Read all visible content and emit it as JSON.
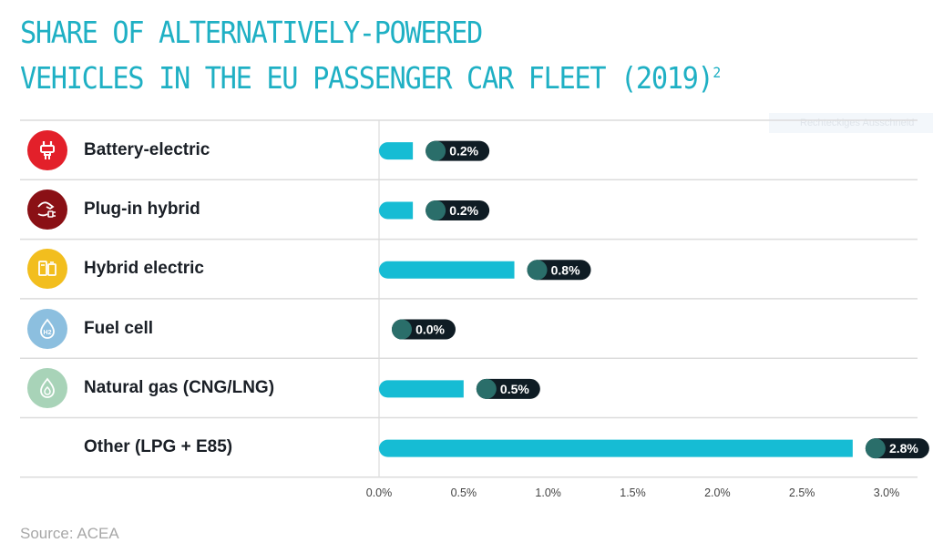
{
  "title": {
    "line1": "SHARE OF ALTERNATIVELY-POWERED",
    "line2": "VEHICLES IN THE EU PASSENGER CAR FLEET (2019)",
    "footnote": "2"
  },
  "ghost_overlay": "Rechteckiges Ausschneid",
  "source": "Source: ACEA",
  "colors": {
    "title": "#1fb0c4",
    "bar": "#16bcd4",
    "pill": "#0f1c24",
    "pill_dot": "#2a6e6a",
    "grid": "#dcdcdc",
    "tick_text": "#444444"
  },
  "rows": [
    {
      "label": "Battery-electric",
      "icon": "plug-icon",
      "icon_color": "#e3202a"
    },
    {
      "label": "Plug-in hybrid",
      "icon": "hand-plug-icon",
      "icon_color": "#8a1015"
    },
    {
      "label": "Hybrid electric",
      "icon": "fuel-pump-battery-icon",
      "icon_color": "#f2be1e"
    },
    {
      "label": "Fuel cell",
      "icon": "h2-drop-icon",
      "icon_color": "#8cbfdf"
    },
    {
      "label": "Natural gas (CNG/LNG)",
      "icon": "gas-flame-icon",
      "icon_color": "#a8d3b8"
    },
    {
      "label": "Other (LPG + E85)",
      "icon": "none",
      "icon_color": ""
    }
  ],
  "chart_data": {
    "type": "bar",
    "orientation": "horizontal",
    "title": "Share of alternatively-powered vehicles in the EU passenger car fleet (2019)",
    "categories": [
      "Battery-electric",
      "Plug-in hybrid",
      "Hybrid electric",
      "Fuel cell",
      "Natural gas (CNG/LNG)",
      "Other (LPG + E85)"
    ],
    "values": [
      0.2,
      0.2,
      0.8,
      0.0,
      0.5,
      2.8
    ],
    "value_labels": [
      "0.2%",
      "0.2%",
      "0.8%",
      "0.0%",
      "0.5%",
      "2.8%"
    ],
    "xlabel": "",
    "ylabel": "",
    "unit": "%",
    "xlim": [
      0,
      3.0
    ],
    "ticks": [
      0.0,
      0.5,
      1.0,
      1.5,
      2.0,
      2.5,
      3.0
    ],
    "tick_labels": [
      "0.0%",
      "0.5%",
      "1.0%",
      "1.5%",
      "2.0%",
      "2.5%",
      "3.0%"
    ],
    "grid": false,
    "legend": "none",
    "source": "ACEA"
  }
}
